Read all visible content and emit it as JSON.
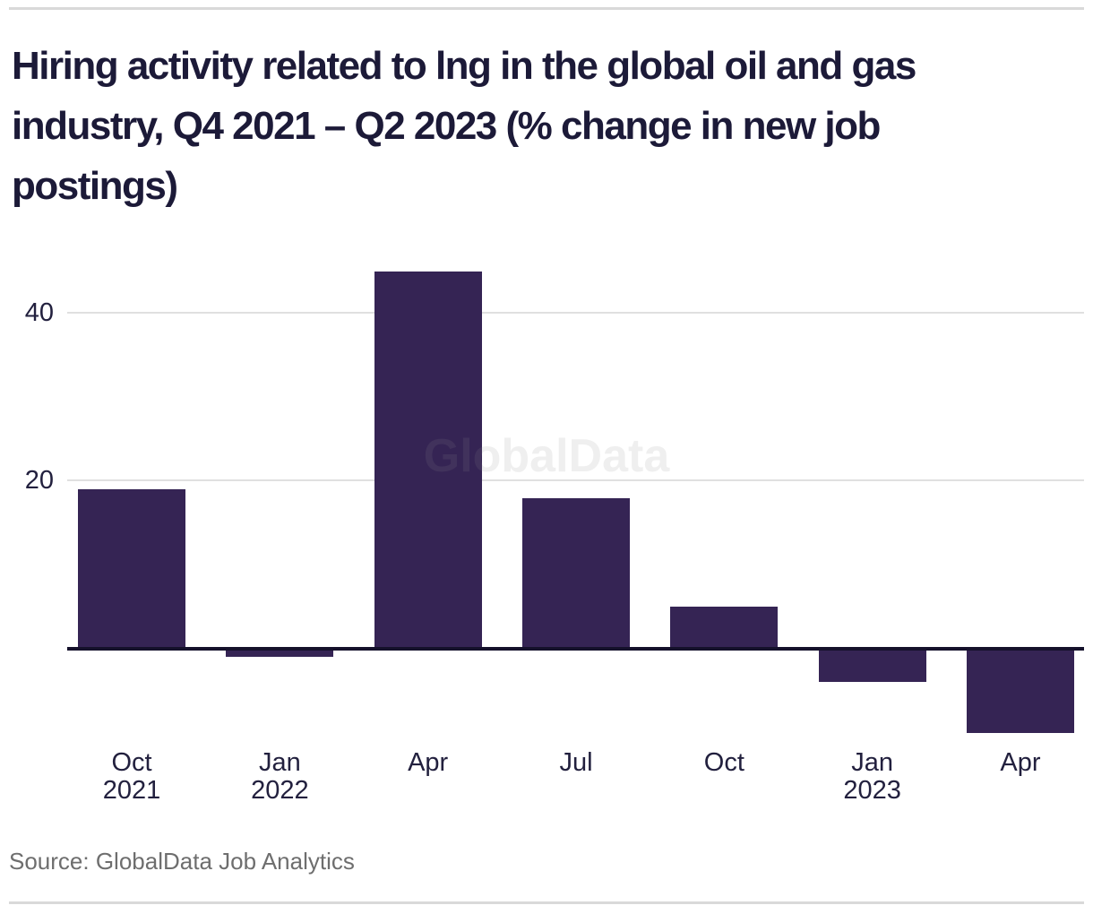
{
  "page": {
    "title_lines": [
      "Hiring activity related to lng in the global oil and gas",
      "industry, Q4 2021 – Q2 2023 (% change in new job",
      "postings)"
    ],
    "watermark": "GlobalData",
    "source": "Source: GlobalData Job Analytics"
  },
  "colors": {
    "bar": "#352454",
    "axis_line": "#15112b",
    "gridline": "#e0e0e0",
    "title_text": "#1c1a38",
    "tick_text": "#22203e",
    "source_text": "#6e6e6e",
    "rule": "#d9d9d9",
    "watermark": "rgba(140,140,140,0.14)"
  },
  "chart_data": {
    "type": "bar",
    "title": "Hiring activity related to lng in the global oil and gas industry, Q4 2021 – Q2 2023 (% change in new job postings)",
    "categories": [
      "Oct 2021",
      "Jan 2022",
      "Apr 2022",
      "Jul 2022",
      "Oct 2022",
      "Jan 2023",
      "Apr 2023"
    ],
    "category_labels": [
      [
        "Oct",
        "2021"
      ],
      [
        "Jan",
        "2022"
      ],
      [
        "Apr"
      ],
      [
        "Jul"
      ],
      [
        "Oct"
      ],
      [
        "Jan",
        "2023"
      ],
      [
        "Apr"
      ]
    ],
    "values": [
      19,
      -1,
      45,
      18,
      5,
      -4,
      -10
    ],
    "xlabel": "",
    "ylabel": "",
    "yticks": [
      20,
      40
    ],
    "ylim": [
      -12,
      48
    ],
    "grid": "horizontal-only",
    "legend": "none",
    "bar_color": "#352454",
    "watermark": "GlobalData",
    "source": "Source: GlobalData Job Analytics"
  }
}
